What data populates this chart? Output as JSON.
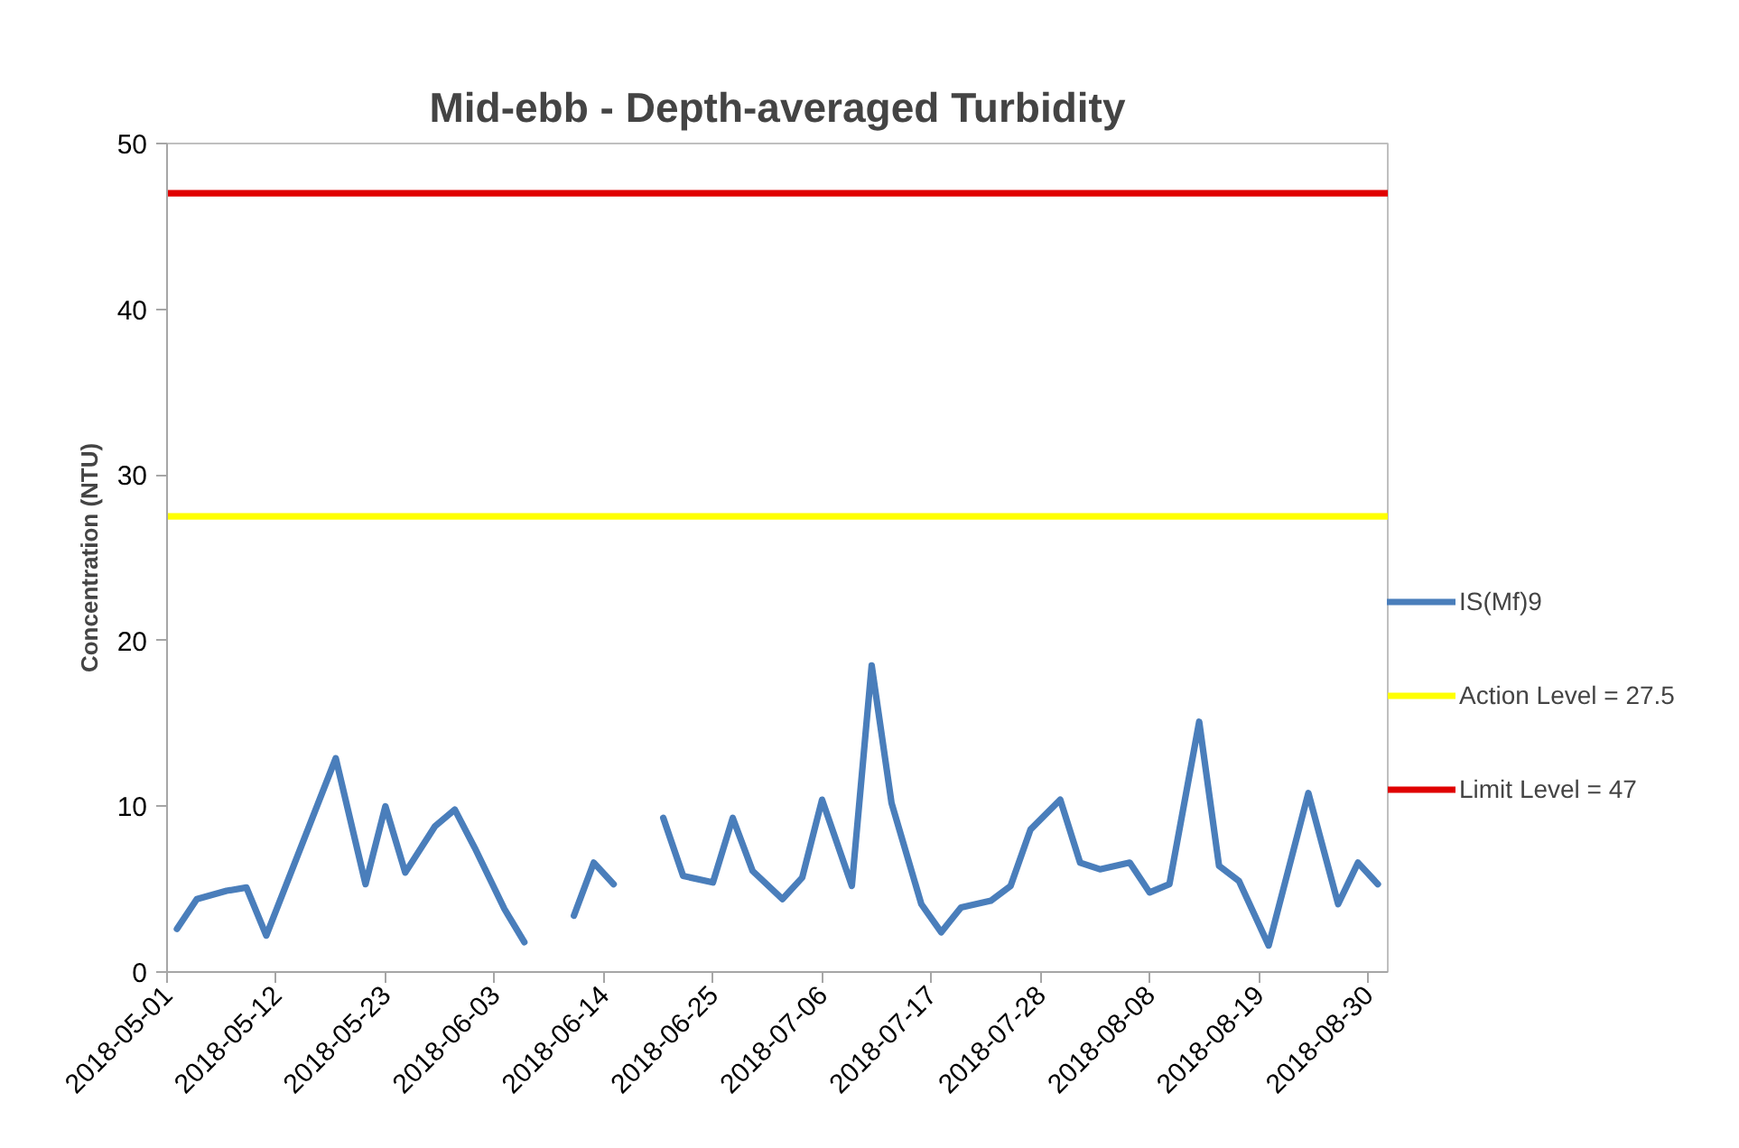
{
  "chart_data": {
    "type": "line",
    "title": "Mid-ebb - Depth-averaged Turbidity",
    "ylabel": "Concentration (NTU)",
    "x": [
      "2018-05-02",
      "2018-05-04",
      "2018-05-07",
      "2018-05-09",
      "2018-05-11",
      "2018-05-18",
      "2018-05-21",
      "2018-05-23",
      "2018-05-25",
      "2018-05-28",
      "2018-05-30",
      "2018-06-01",
      "2018-06-04",
      "2018-06-06",
      "2018-06-08",
      "2018-06-11",
      "2018-06-13",
      "2018-06-15",
      "2018-06-18",
      "2018-06-20",
      "2018-06-22",
      "2018-06-25",
      "2018-06-27",
      "2018-06-29",
      "2018-07-02",
      "2018-07-04",
      "2018-07-06",
      "2018-07-09",
      "2018-07-11",
      "2018-07-13",
      "2018-07-16",
      "2018-07-18",
      "2018-07-20",
      "2018-07-23",
      "2018-07-25",
      "2018-07-27",
      "2018-07-30",
      "2018-08-01",
      "2018-08-03",
      "2018-08-06",
      "2018-08-08",
      "2018-08-10",
      "2018-08-13",
      "2018-08-15",
      "2018-08-17",
      "2018-08-20",
      "2018-08-24",
      "2018-08-27",
      "2018-08-29",
      "2018-08-31"
    ],
    "series": [
      {
        "name": "IS(Mf)9",
        "color": "#4a7ebb",
        "values": [
          2.6,
          4.4,
          4.9,
          5.1,
          2.2,
          12.9,
          5.3,
          10.0,
          6.0,
          8.8,
          9.8,
          7.5,
          3.8,
          1.8,
          null,
          3.4,
          6.6,
          5.3,
          null,
          9.3,
          5.8,
          5.4,
          9.3,
          6.1,
          4.4,
          5.7,
          10.4,
          5.2,
          18.5,
          10.2,
          4.1,
          2.4,
          3.9,
          4.3,
          5.2,
          8.6,
          10.4,
          6.6,
          6.2,
          6.6,
          4.8,
          5.3,
          15.1,
          6.4,
          5.5,
          1.6,
          10.8,
          4.1,
          6.6,
          5.3
        ]
      }
    ],
    "xlim": [
      "2018-05-01",
      "2018-09-01"
    ],
    "xticks": [
      "2018-05-01",
      "2018-05-12",
      "2018-05-23",
      "2018-06-03",
      "2018-06-14",
      "2018-06-25",
      "2018-07-06",
      "2018-07-17",
      "2018-07-28",
      "2018-08-08",
      "2018-08-19",
      "2018-08-30"
    ],
    "ylim": [
      0,
      50
    ],
    "yticks": [
      0,
      10,
      20,
      30,
      40,
      50
    ],
    "ref_lines": [
      {
        "axis": "y",
        "value": 27.5,
        "label": "Action Level = 27.5",
        "color": "#ffff00"
      },
      {
        "axis": "y",
        "value": 47,
        "label": "Limit Level = 47",
        "color": "#e00000"
      }
    ],
    "grid": false,
    "legend": "right",
    "marker": "none",
    "line_style": "solid"
  }
}
